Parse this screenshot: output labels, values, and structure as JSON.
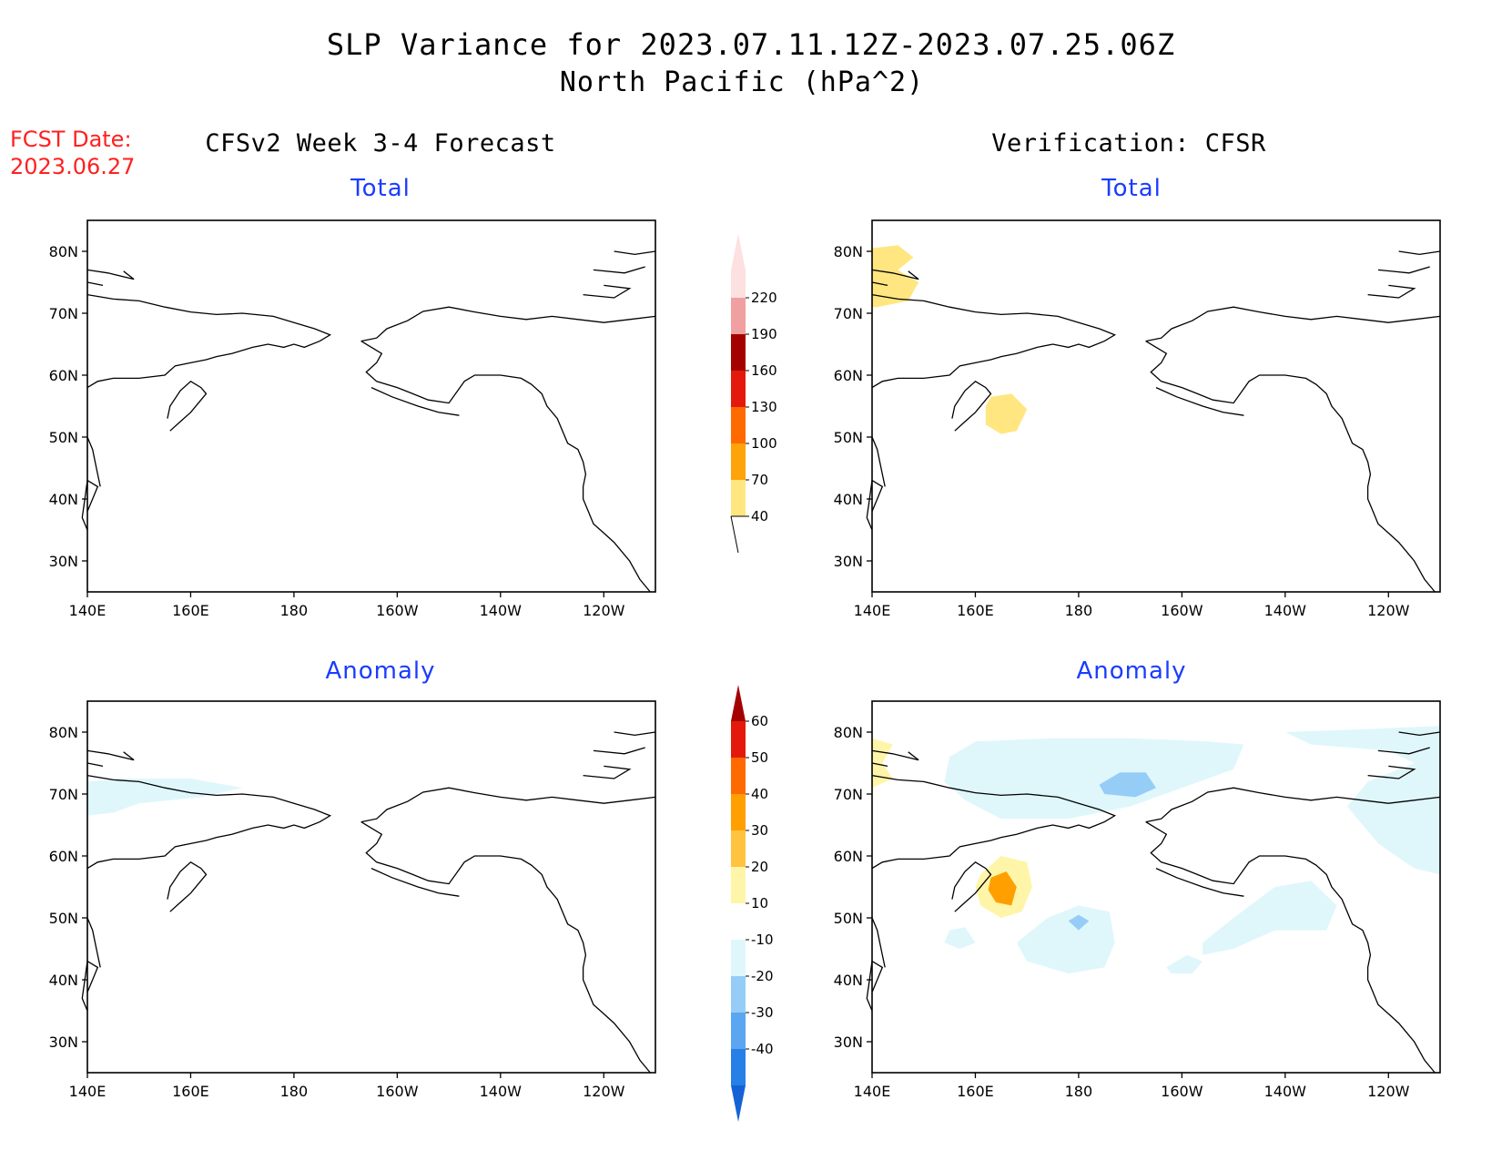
{
  "title_line1": "SLP Variance for 2023.07.11.12Z-2023.07.25.06Z",
  "title_line2": "North Pacific (hPa^2)",
  "fcst_label": "FCST Date:",
  "fcst_date": "2023.06.27",
  "left_heading": "CFSv2 Week 3-4 Forecast",
  "right_heading": "Verification: CFSR",
  "panel_titles": {
    "top_left": "Total",
    "top_right": "Total",
    "bottom_left": "Anomaly",
    "bottom_right": "Anomaly"
  },
  "map_extent": {
    "lon_min_E": 140,
    "lon_max_E": 250,
    "lat_min": 25,
    "lat_max": 85
  },
  "lat_labels": [
    "80N",
    "70N",
    "60N",
    "50N",
    "40N",
    "30N"
  ],
  "lat_values": [
    80,
    70,
    60,
    50,
    40,
    30
  ],
  "lon_labels": [
    "140E",
    "160E",
    "180",
    "160W",
    "140W",
    "120W"
  ],
  "lon_values_E": [
    140,
    160,
    180,
    200,
    220,
    240
  ],
  "total_colorbar": {
    "levels": [
      "40",
      "70",
      "100",
      "130",
      "160",
      "190",
      "220"
    ],
    "colors": [
      "#ffe680",
      "#ffa30a",
      "#ff6a00",
      "#e31a0b",
      "#a50000",
      "#f0a0a0",
      "#fde0e0"
    ]
  },
  "anomaly_colorbar": {
    "levels": [
      "-40",
      "-30",
      "-20",
      "-10",
      "10",
      "20",
      "30",
      "40",
      "50",
      "60"
    ],
    "colors": [
      "#1463d6",
      "#2680e6",
      "#5aa6f0",
      "#96cdf7",
      "#dff7fb",
      "#ffffff",
      "#fff5a8",
      "#ffc340",
      "#ff9f00",
      "#ff6a00",
      "#e31a0b",
      "#a50000"
    ]
  },
  "shading_colors": {
    "var_40_70": "#ffe680",
    "anom_pos_10_20": "#fff5a8",
    "anom_pos_20_30": "#ffc340",
    "anom_pos_30_40": "#ff9f00",
    "anom_neg_10_20": "#dff7fb",
    "anom_neg_20_30": "#96cdf7"
  }
}
